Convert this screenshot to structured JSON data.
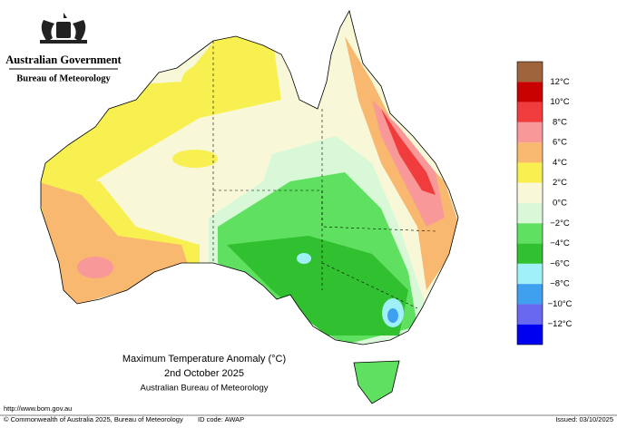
{
  "header": {
    "agency": "Australian Government",
    "bureau": "Bureau of Meteorology"
  },
  "map": {
    "title": "Maximum Temperature Anomaly (°C)",
    "date": "2nd October 2025",
    "source": "Australian Bureau of Meteorology"
  },
  "legend": {
    "colors": [
      "#a0643c",
      "#c80000",
      "#f03c3c",
      "#f89898",
      "#f8b870",
      "#f8f050",
      "#f8f8d8",
      "#d8f8d8",
      "#60e060",
      "#30c030",
      "#a0f0f8",
      "#40a0f0",
      "#6868f0",
      "#0000f0"
    ],
    "labels": [
      "12°C",
      "10°C",
      "8°C",
      "6°C",
      "4°C",
      "2°C",
      "0°C",
      "−2°C",
      "−4°C",
      "−6°C",
      "−8°C",
      "−10°C",
      "−12°C"
    ]
  },
  "footer": {
    "url": "http://www.bom.gov.au",
    "copyright": "© Commonwealth of Australia 2025, Bureau of Meteorology",
    "id": "ID code: AWAP",
    "issued": "Issued: 03/10/2025"
  }
}
